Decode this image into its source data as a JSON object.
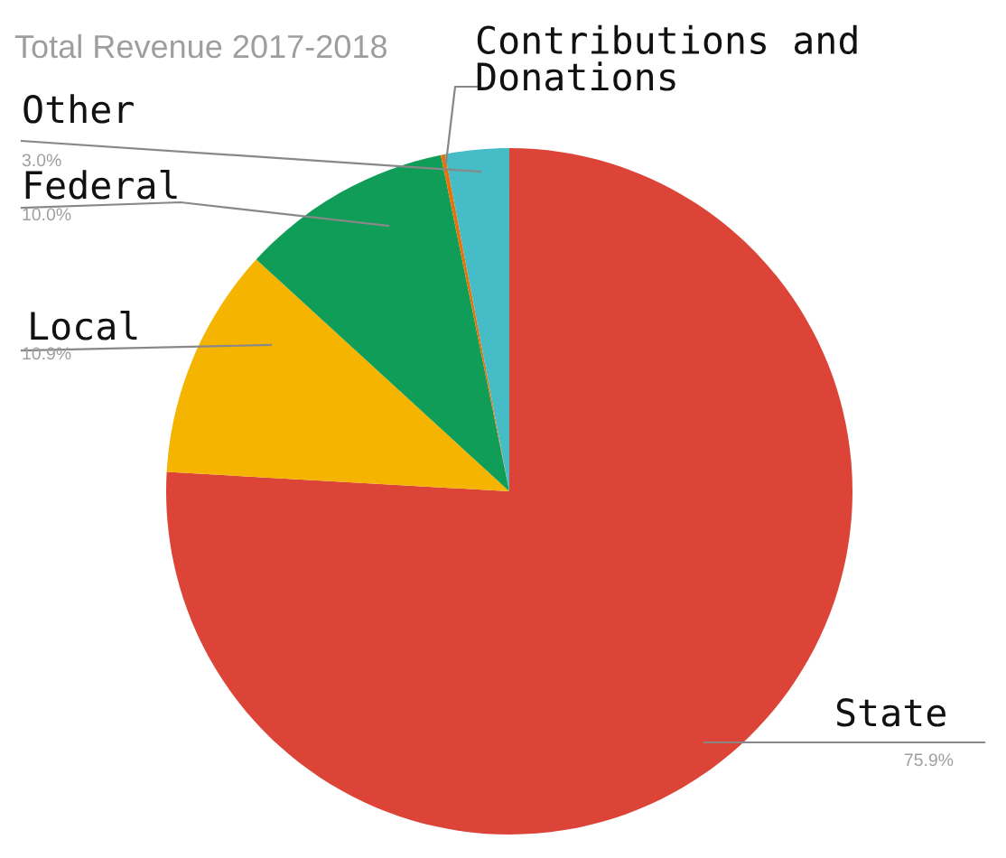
{
  "chart_data": {
    "type": "pie",
    "title": "Total Revenue 2017-2018",
    "categories": [
      "State",
      "Local",
      "Federal",
      "Contributions and\nDonations",
      "Other"
    ],
    "values": [
      75.9,
      10.9,
      10.0,
      0.2,
      3.0
    ],
    "colors": [
      "#db4437",
      "#f4b400",
      "#0f9d58",
      "#e8710a",
      "#46bdc6"
    ],
    "value_labels": [
      "75.9%",
      "10.9%",
      "10.0%",
      null,
      "3.0%"
    ],
    "legend": false
  }
}
